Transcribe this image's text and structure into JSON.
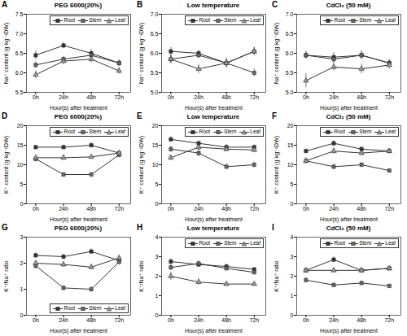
{
  "chart_data": [
    {
      "type": "line",
      "title": "PEG 6000(20%)",
      "annotations": [
        "A"
      ],
      "xlabel": "Hour(s) after treatment",
      "ylabel": "Na⁺ content (g·kg⁻¹DW)",
      "x": [
        0,
        24,
        48,
        72
      ],
      "xlim": [
        -8,
        82
      ],
      "xticks": [
        {
          "value": 0,
          "label": "0h"
        },
        {
          "value": 24,
          "label": "24h"
        },
        {
          "value": 48,
          "label": "48h"
        },
        {
          "value": 72,
          "label": "72h"
        }
      ],
      "ylim": [
        5.5,
        7.5
      ],
      "yticks": [
        5.5,
        {
          "value": 6,
          "label": "6.0"
        },
        6.5,
        {
          "value": 7,
          "label": "7.0"
        },
        7.5
      ],
      "legend": "upper right",
      "series": [
        {
          "name": "Root",
          "color": "#333333",
          "marker": "square",
          "values": [
            6.45,
            6.7,
            6.5,
            6.25
          ],
          "errors": [
            0.12,
            0.08,
            0.1,
            0.08
          ]
        },
        {
          "name": "Stem",
          "color": "#333333",
          "marker": "square",
          "values": [
            6.2,
            6.35,
            6.45,
            6.25
          ],
          "errors": [
            0.08,
            0.07,
            0.08,
            0.07
          ]
        },
        {
          "name": "Leaf",
          "color": "#333333",
          "marker": "triangle",
          "values": [
            5.95,
            6.3,
            6.35,
            6.05
          ],
          "errors": [
            0.1,
            0.09,
            0.09,
            0.08
          ]
        }
      ]
    },
    {
      "type": "line",
      "title": "Low temperature",
      "annotations": [
        "B"
      ],
      "xlabel": "Hour(s) after treatment",
      "ylabel": "Na⁺ content (g·kg⁻¹DW)",
      "x": [
        0,
        24,
        48,
        72
      ],
      "xlim": [
        -8,
        82
      ],
      "xticks": [
        {
          "value": 0,
          "label": "0h"
        },
        {
          "value": 24,
          "label": "24h"
        },
        {
          "value": 48,
          "label": "48h"
        },
        {
          "value": 72,
          "label": "72h"
        }
      ],
      "ylim": [
        5,
        7
      ],
      "yticks": [
        {
          "value": 5,
          "label": "5.0"
        },
        5.5,
        {
          "value": 6,
          "label": "6.0"
        },
        6.5,
        {
          "value": 7,
          "label": "7.0"
        }
      ],
      "legend": "upper right",
      "series": [
        {
          "name": "Root",
          "color": "#333333",
          "marker": "square",
          "values": [
            6.05,
            6.0,
            5.75,
            6.05
          ],
          "errors": [
            0.1,
            0.08,
            0.1,
            0.1
          ]
        },
        {
          "name": "Stem",
          "color": "#333333",
          "marker": "square",
          "values": [
            5.85,
            5.95,
            5.75,
            5.5
          ],
          "errors": [
            0.12,
            0.08,
            0.12,
            0.1
          ]
        },
        {
          "name": "Leaf",
          "color": "#333333",
          "marker": "triangle",
          "values": [
            5.85,
            5.6,
            5.75,
            6.05
          ],
          "errors": [
            0.1,
            0.12,
            0.08,
            0.1
          ]
        }
      ]
    },
    {
      "type": "line",
      "title": "CdCl₂ (50 mM)",
      "annotations": [
        "C"
      ],
      "xlabel": "Hour(s) after treatment",
      "ylabel": "Na⁺ content (g·kg⁻¹DW)",
      "x": [
        0,
        24,
        48,
        72
      ],
      "xlim": [
        -8,
        82
      ],
      "xticks": [
        {
          "value": 0,
          "label": "0h"
        },
        {
          "value": 24,
          "label": "24h"
        },
        {
          "value": 48,
          "label": "48h"
        },
        {
          "value": 72,
          "label": "72h"
        }
      ],
      "ylim": [
        5,
        7
      ],
      "yticks": [
        {
          "value": 5,
          "label": "5.0"
        },
        5.5,
        {
          "value": 6,
          "label": "6.0"
        },
        6.5,
        {
          "value": 7,
          "label": "7.0"
        }
      ],
      "legend": "upper right",
      "series": [
        {
          "name": "Root",
          "color": "#333333",
          "marker": "square",
          "values": [
            5.95,
            5.9,
            5.95,
            5.75
          ],
          "errors": [
            0.1,
            0.12,
            0.12,
            0.08
          ]
        },
        {
          "name": "Stem",
          "color": "#333333",
          "marker": "square",
          "values": [
            5.95,
            5.85,
            5.95,
            5.75
          ],
          "errors": [
            0.08,
            0.1,
            0.08,
            0.07
          ]
        },
        {
          "name": "Leaf",
          "color": "#333333",
          "marker": "triangle",
          "values": [
            5.3,
            5.65,
            5.6,
            5.7
          ],
          "errors": [
            0.18,
            0.1,
            0.12,
            0.1
          ]
        }
      ]
    },
    {
      "type": "line",
      "title": "PEG 6000(20%)",
      "annotations": [
        "D"
      ],
      "xlabel": "Hour(s) after treatment",
      "ylabel": "K⁺ content (g·kg⁻¹DW)",
      "x": [
        0,
        24,
        48,
        72
      ],
      "xlim": [
        -8,
        82
      ],
      "xticks": [
        {
          "value": 0,
          "label": "0h"
        },
        {
          "value": 24,
          "label": "24h"
        },
        {
          "value": 48,
          "label": "48h"
        },
        {
          "value": 72,
          "label": "72h"
        }
      ],
      "ylim": [
        0,
        20
      ],
      "yticks": [
        0,
        5,
        10,
        15,
        20
      ],
      "legend": "upper right",
      "series": [
        {
          "name": "Root",
          "color": "#333333",
          "marker": "square",
          "values": [
            14.5,
            14.5,
            15.0,
            13.0
          ],
          "errors": [
            0.5,
            0.5,
            0.6,
            0.5
          ]
        },
        {
          "name": "Stem",
          "color": "#333333",
          "marker": "square",
          "values": [
            11.5,
            7.5,
            7.5,
            12.5
          ],
          "errors": [
            0.8,
            0.5,
            0.6,
            0.7
          ]
        },
        {
          "name": "Leaf",
          "color": "#333333",
          "marker": "triangle",
          "values": [
            11.8,
            11.8,
            12.0,
            13.0
          ],
          "errors": [
            0.6,
            0.7,
            0.5,
            0.6
          ]
        }
      ]
    },
    {
      "type": "line",
      "title": "Low temperature",
      "annotations": [
        "E"
      ],
      "xlabel": "Hour(s) after treatment",
      "ylabel": "K⁺ content (g·kg⁻¹DW)",
      "x": [
        0,
        24,
        48,
        72
      ],
      "xlim": [
        -8,
        82
      ],
      "xticks": [
        {
          "value": 0,
          "label": "0h"
        },
        {
          "value": 24,
          "label": "24h"
        },
        {
          "value": 48,
          "label": "48h"
        },
        {
          "value": 72,
          "label": "72h"
        }
      ],
      "ylim": [
        0,
        20
      ],
      "yticks": [
        0,
        5,
        10,
        15,
        20
      ],
      "legend": "upper right",
      "series": [
        {
          "name": "Root",
          "color": "#333333",
          "marker": "square",
          "values": [
            16.5,
            15.5,
            14.5,
            14.5
          ],
          "errors": [
            0.7,
            0.6,
            0.7,
            0.6
          ]
        },
        {
          "name": "Stem",
          "color": "#333333",
          "marker": "square",
          "values": [
            14.0,
            13.0,
            9.5,
            10.0
          ],
          "errors": [
            0.8,
            0.9,
            0.7,
            0.7
          ]
        },
        {
          "name": "Leaf",
          "color": "#333333",
          "marker": "triangle",
          "values": [
            11.8,
            14.5,
            14.0,
            13.8
          ],
          "errors": [
            0.7,
            0.8,
            0.6,
            0.7
          ]
        }
      ]
    },
    {
      "type": "line",
      "title": "CdCl₂ (50 mM)",
      "annotations": [
        "F"
      ],
      "xlabel": "Hour(s) after treatment",
      "ylabel": "K⁺ content (g·kg⁻¹DW)",
      "x": [
        0,
        24,
        48,
        72
      ],
      "xlim": [
        -8,
        82
      ],
      "xticks": [
        {
          "value": 0,
          "label": "0h"
        },
        {
          "value": 24,
          "label": "24h"
        },
        {
          "value": 48,
          "label": "48h"
        },
        {
          "value": 72,
          "label": "72h"
        }
      ],
      "ylim": [
        0,
        20
      ],
      "yticks": [
        0,
        5,
        10,
        15,
        20
      ],
      "legend": "upper right",
      "series": [
        {
          "name": "Root",
          "color": "#333333",
          "marker": "square",
          "values": [
            13.5,
            15.5,
            14.0,
            13.5
          ],
          "errors": [
            0.6,
            0.7,
            0.7,
            0.6
          ]
        },
        {
          "name": "Stem",
          "color": "#333333",
          "marker": "square",
          "values": [
            11.0,
            9.5,
            10.0,
            8.5
          ],
          "errors": [
            0.7,
            0.7,
            0.6,
            0.5
          ]
        },
        {
          "name": "Leaf",
          "color": "#333333",
          "marker": "triangle",
          "values": [
            11.0,
            13.5,
            13.0,
            13.5
          ],
          "errors": [
            0.7,
            0.8,
            0.7,
            0.6
          ]
        }
      ]
    },
    {
      "type": "line",
      "title": "PEG 6000(20%)",
      "annotations": [
        "G"
      ],
      "xlabel": "Hour(s) after treatment",
      "ylabel": "K⁺/Na⁺ ratio",
      "x": [
        0,
        24,
        48,
        72
      ],
      "xlim": [
        -8,
        82
      ],
      "xticks": [
        {
          "value": 0,
          "label": "0h"
        },
        {
          "value": 24,
          "label": "24h"
        },
        {
          "value": 48,
          "label": "48h"
        },
        {
          "value": 72,
          "label": "72h"
        }
      ],
      "ylim": [
        0,
        3
      ],
      "yticks": [
        0,
        1,
        2,
        3
      ],
      "legend": "lower right",
      "series": [
        {
          "name": "Root",
          "color": "#333333",
          "marker": "square",
          "values": [
            2.3,
            2.25,
            2.45,
            2.1
          ],
          "errors": [
            0.1,
            0.1,
            0.1,
            0.1
          ]
        },
        {
          "name": "Stem",
          "color": "#333333",
          "marker": "square",
          "values": [
            1.9,
            1.05,
            1.0,
            2.05
          ],
          "errors": [
            0.12,
            0.1,
            0.1,
            0.12
          ]
        },
        {
          "name": "Leaf",
          "color": "#333333",
          "marker": "triangle",
          "values": [
            2.0,
            1.95,
            1.85,
            2.2
          ],
          "errors": [
            0.1,
            0.1,
            0.1,
            0.1
          ]
        }
      ]
    },
    {
      "type": "line",
      "title": "Low temperature",
      "annotations": [
        "H"
      ],
      "xlabel": "Hour(s) after treatment",
      "ylabel": "K⁺/Na⁺ ratio",
      "x": [
        0,
        24,
        48,
        72
      ],
      "xlim": [
        -8,
        82
      ],
      "xticks": [
        {
          "value": 0,
          "label": "0h"
        },
        {
          "value": 24,
          "label": "24h"
        },
        {
          "value": 48,
          "label": "48h"
        },
        {
          "value": 72,
          "label": "72h"
        }
      ],
      "ylim": [
        0,
        4
      ],
      "yticks": [
        0,
        1,
        2,
        3,
        4
      ],
      "legend": "upper right",
      "series": [
        {
          "name": "Root",
          "color": "#333333",
          "marker": "square",
          "values": [
            2.75,
            2.6,
            2.5,
            2.35
          ],
          "errors": [
            0.15,
            0.12,
            0.12,
            0.1
          ]
        },
        {
          "name": "Stem",
          "color": "#333333",
          "marker": "square",
          "values": [
            2.45,
            2.65,
            2.4,
            2.2
          ],
          "errors": [
            0.15,
            0.15,
            0.1,
            0.12
          ]
        },
        {
          "name": "Leaf",
          "color": "#333333",
          "marker": "triangle",
          "values": [
            2.0,
            1.7,
            1.6,
            1.6
          ],
          "errors": [
            0.2,
            0.15,
            0.12,
            0.1
          ]
        }
      ]
    },
    {
      "type": "line",
      "title": "CdCl₂ (50 mM)",
      "annotations": [
        "I"
      ],
      "xlabel": "Hour(s) after treatment",
      "ylabel": "K⁺/Na⁺ ratio",
      "x": [
        0,
        24,
        48,
        72
      ],
      "xlim": [
        -8,
        82
      ],
      "xticks": [
        {
          "value": 0,
          "label": "0h"
        },
        {
          "value": 24,
          "label": "24h"
        },
        {
          "value": 48,
          "label": "48h"
        },
        {
          "value": 72,
          "label": "72h"
        }
      ],
      "ylim": [
        0,
        4
      ],
      "yticks": [
        0,
        1,
        2,
        3,
        4
      ],
      "legend": "upper right",
      "series": [
        {
          "name": "Root",
          "color": "#333333",
          "marker": "square",
          "values": [
            2.3,
            2.85,
            2.3,
            2.4
          ],
          "errors": [
            0.12,
            0.15,
            0.12,
            0.1
          ]
        },
        {
          "name": "Stem",
          "color": "#333333",
          "marker": "square",
          "values": [
            1.8,
            1.55,
            1.65,
            1.5
          ],
          "errors": [
            0.12,
            0.12,
            0.1,
            0.1
          ]
        },
        {
          "name": "Leaf",
          "color": "#333333",
          "marker": "triangle",
          "values": [
            2.3,
            2.3,
            2.3,
            2.4
          ],
          "errors": [
            0.12,
            0.12,
            0.12,
            0.1
          ]
        }
      ]
    }
  ]
}
